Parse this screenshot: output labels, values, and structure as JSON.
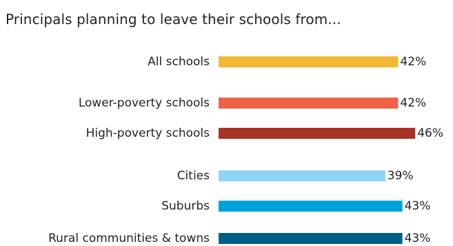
{
  "chart_data": {
    "type": "bar",
    "orientation": "horizontal",
    "title": "Principals planning to leave their schools from...",
    "xlabel": "",
    "ylabel": "",
    "xlim": [
      0,
      46
    ],
    "grid": false,
    "legend": "none",
    "value_suffix": "%",
    "categories": [
      "All schools",
      "Lower-poverty schools",
      "High-poverty schools",
      "Cities",
      "Suburbs",
      "Rural communities & towns"
    ],
    "values": [
      42,
      42,
      46,
      39,
      43,
      43
    ],
    "data_labels": [
      "42%",
      "42%",
      "46%",
      "39%",
      "43%",
      "43%"
    ],
    "colors": [
      "#F2B731",
      "#F06147",
      "#A83424",
      "#8FD5F3",
      "#00A2DB",
      "#005E87"
    ]
  }
}
